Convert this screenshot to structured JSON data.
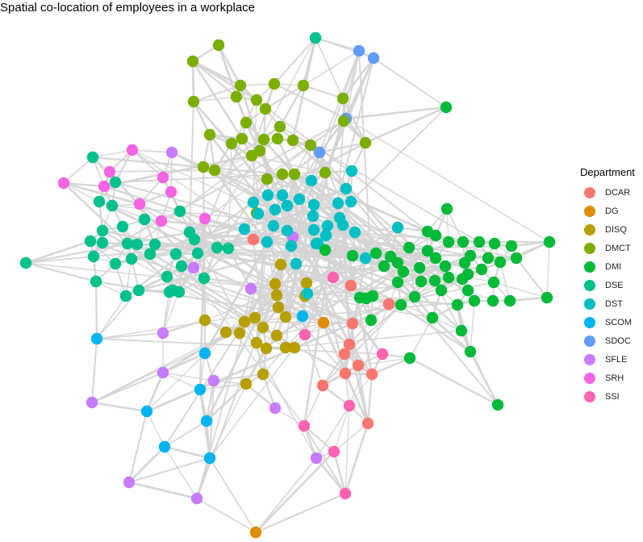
{
  "title": "Spatial co-location of employees in a workplace",
  "legend": {
    "title": "Department",
    "items": [
      {
        "label": "DCAR",
        "color": "#F8766D"
      },
      {
        "label": "DG",
        "color": "#DE8C00"
      },
      {
        "label": "DISQ",
        "color": "#B79F00"
      },
      {
        "label": "DMCT",
        "color": "#7CAE00"
      },
      {
        "label": "DMI",
        "color": "#00BA38"
      },
      {
        "label": "DSE",
        "color": "#00C08B"
      },
      {
        "label": "DST",
        "color": "#00BFC4"
      },
      {
        "label": "SCOM",
        "color": "#00B4F0"
      },
      {
        "label": "SDOC",
        "color": "#619CFF"
      },
      {
        "label": "SFLE",
        "color": "#C77CFF"
      },
      {
        "label": "SRH",
        "color": "#F564E3"
      },
      {
        "label": "SSI",
        "color": "#FF64B0"
      }
    ]
  },
  "edge_color": "#d4d4d4"
}
